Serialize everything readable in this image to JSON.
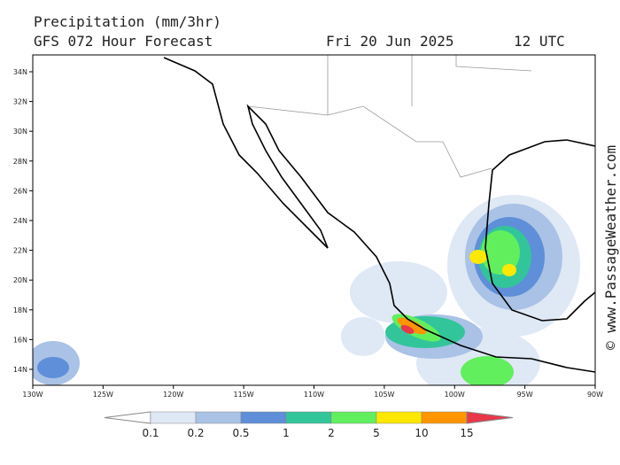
{
  "header": {
    "title": "Precipitation (mm/3hr)",
    "model": "GFS 072 Hour Forecast",
    "date": "Fri 20 Jun 2025",
    "time": "12 UTC"
  },
  "copyright": "© www.PassageWeather.com",
  "map": {
    "lat_labels": [
      "34N",
      "32N",
      "30N",
      "28N",
      "26N",
      "24N",
      "22N",
      "20N",
      "18N",
      "16N",
      "14N"
    ],
    "lon_labels": [
      "130W",
      "125W",
      "120W",
      "115W",
      "110W",
      "105W",
      "100W",
      "95W",
      "90W"
    ]
  },
  "legend": {
    "levels": [
      0.1,
      0.2,
      0.5,
      1,
      2,
      5,
      10,
      15
    ],
    "colors": [
      "#dfe8f5",
      "#a9c2e6",
      "#5e8fd8",
      "#33c59a",
      "#62ef5e",
      "#ffe800",
      "#ff9500"
    ],
    "under_color": "#ffffff",
    "over_color": "#e8384a"
  }
}
